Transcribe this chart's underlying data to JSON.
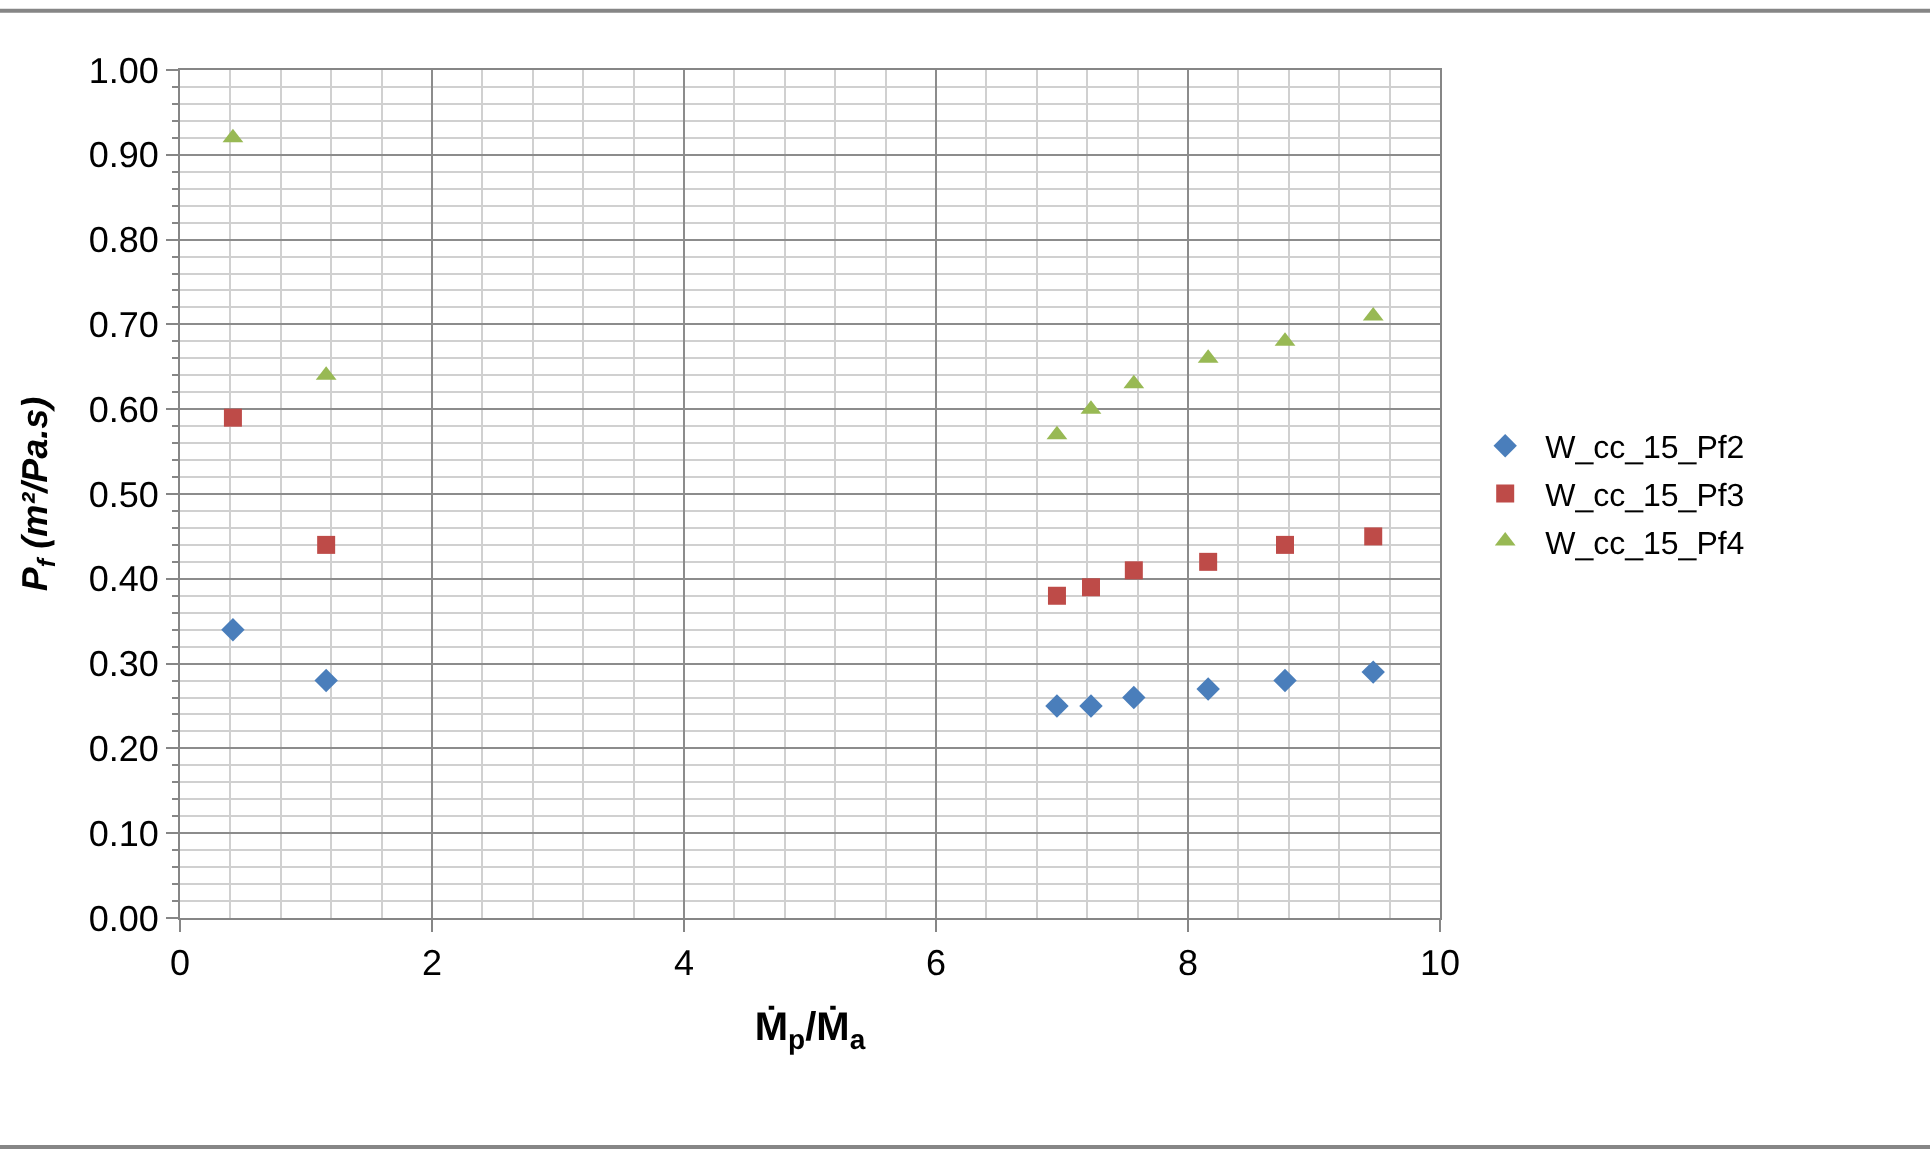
{
  "chart_data": {
    "type": "scatter",
    "xlabel": "Ṁ$_{p}$/Ṁ$_{a}$",
    "ylabel": "P$_{f}$ (m²/Pa.s)",
    "x": [
      0.42,
      1.16,
      6.96,
      7.23,
      7.57,
      8.16,
      8.77,
      9.47
    ],
    "series": [
      {
        "name": "W_cc_15_Pf2",
        "color": "#4a7ebb",
        "marker": "diamond",
        "values": [
          0.34,
          0.28,
          0.25,
          0.25,
          0.26,
          0.27,
          0.28,
          0.29
        ]
      },
      {
        "name": "W_cc_15_Pf3",
        "color": "#be4b48",
        "marker": "square",
        "values": [
          0.59,
          0.44,
          0.38,
          0.39,
          0.41,
          0.42,
          0.44,
          0.45
        ]
      },
      {
        "name": "W_cc_15_Pf4",
        "color": "#98b954",
        "marker": "triangle",
        "values": [
          0.92,
          0.64,
          0.57,
          0.6,
          0.63,
          0.66,
          0.68,
          0.71
        ]
      }
    ],
    "xlim": [
      0,
      10
    ],
    "xticks": [
      0,
      2,
      4,
      6,
      8,
      10
    ],
    "ylim": [
      0,
      1
    ],
    "yticks": [
      {
        "value": 0,
        "label": "0.00"
      },
      {
        "value": 0.1,
        "label": "0.10"
      },
      {
        "value": 0.2,
        "label": "0.20"
      },
      {
        "value": 0.3,
        "label": "0.30"
      },
      {
        "value": 0.4,
        "label": "0.40"
      },
      {
        "value": 0.5,
        "label": "0.50"
      },
      {
        "value": 0.6,
        "label": "0.60"
      },
      {
        "value": 0.7,
        "label": "0.70"
      },
      {
        "value": 0.8,
        "label": "0.80"
      },
      {
        "value": 0.9,
        "label": "0.90"
      },
      {
        "value": 1,
        "label": "1.00"
      }
    ],
    "grid": true,
    "legend": "right"
  }
}
